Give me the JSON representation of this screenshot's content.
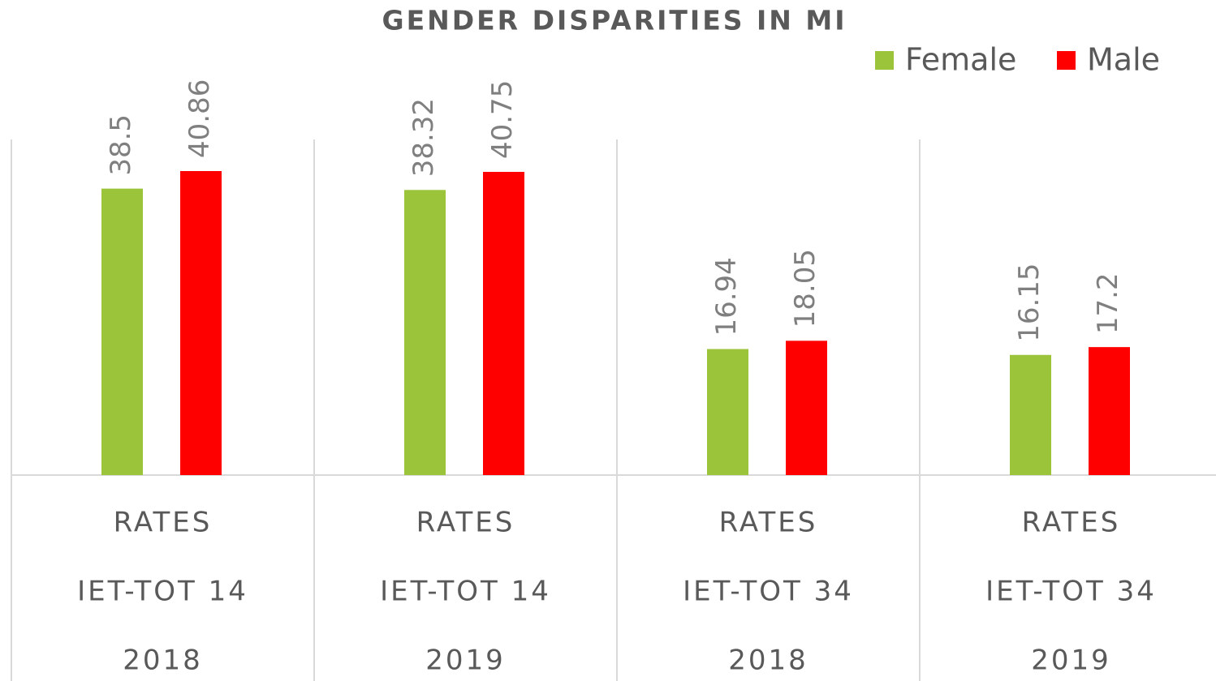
{
  "chart_data": {
    "type": "bar",
    "title": "GENDER DISPARITIES IN MI",
    "categories": [
      [
        "RATES",
        "IET-TOT 14",
        "2018"
      ],
      [
        "RATES",
        "IET-TOT 14",
        "2019"
      ],
      [
        "RATES",
        "IET-TOT 34",
        "2018"
      ],
      [
        "RATES",
        "IET-TOT 34",
        "2019"
      ]
    ],
    "series": [
      {
        "name": "Female",
        "color": "#9bc43b",
        "values": [
          38.5,
          38.32,
          16.94,
          16.15
        ]
      },
      {
        "name": "Male",
        "color": "#ff0000",
        "values": [
          40.86,
          40.75,
          18.05,
          17.2
        ]
      }
    ],
    "legend": "top-right"
  }
}
